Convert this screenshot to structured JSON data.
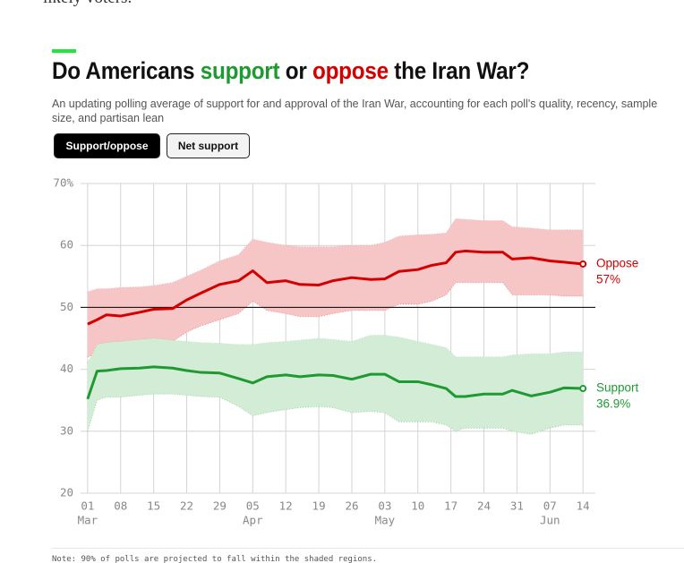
{
  "intro_fragment": "likely voters.",
  "header": {
    "title_parts": [
      "Do Americans ",
      "support",
      " or ",
      "oppose",
      " the Iran War?"
    ],
    "subtitle": "An updating polling average of support for and approval of the Iran War, accounting for each poll's quality, recency, sample size, and partisan lean"
  },
  "buttons": [
    "Support/oppose",
    "Net support"
  ],
  "chart_data": {
    "type": "band-line",
    "xlim": [
      "02-28",
      "06-17"
    ],
    "xticks": [
      {
        "value": "03-01",
        "label": "01"
      },
      {
        "value": "03-08",
        "label": "08"
      },
      {
        "value": "03-15",
        "label": "15"
      },
      {
        "value": "03-22",
        "label": "22"
      },
      {
        "value": "03-29",
        "label": "29"
      },
      {
        "value": "04-05",
        "label": "05"
      },
      {
        "value": "04-12",
        "label": "12"
      },
      {
        "value": "04-19",
        "label": "19"
      },
      {
        "value": "04-26",
        "label": "26"
      },
      {
        "value": "05-03",
        "label": "03"
      },
      {
        "value": "05-10",
        "label": "10"
      },
      {
        "value": "05-17",
        "label": "17"
      },
      {
        "value": "05-24",
        "label": "24"
      },
      {
        "value": "05-31",
        "label": "31"
      },
      {
        "value": "06-07",
        "label": "07"
      },
      {
        "value": "06-14",
        "label": "14"
      }
    ],
    "xtick_months": [
      {
        "value": "03-01",
        "label": "Mar"
      },
      {
        "value": "04-05",
        "label": "Apr"
      },
      {
        "value": "05-03",
        "label": "May"
      },
      {
        "value": "06-07",
        "label": "Jun"
      }
    ],
    "ylim": [
      20,
      70
    ],
    "yticks": [
      20,
      30,
      40,
      50,
      60,
      {
        "value": 70,
        "label": "70%"
      }
    ],
    "hline": 50,
    "grid": true,
    "x": [
      "03-01",
      "03-03",
      "03-05",
      "03-08",
      "03-12",
      "03-15",
      "03-19",
      "03-22",
      "03-25",
      "03-29",
      "04-02",
      "04-05",
      "04-08",
      "04-12",
      "04-15",
      "04-19",
      "04-22",
      "04-26",
      "04-30",
      "05-03",
      "05-06",
      "05-10",
      "05-13",
      "05-16",
      "05-18",
      "05-20",
      "05-24",
      "05-28",
      "05-30",
      "06-03",
      "06-07",
      "06-10",
      "06-14"
    ],
    "series": [
      {
        "name": "Oppose",
        "color": "#d40000",
        "band_color": "#f6c5c5",
        "end_label": "57%",
        "values": [
          47.3,
          48.0,
          48.8,
          48.6,
          49.2,
          49.7,
          49.8,
          51.2,
          52.3,
          53.7,
          54.3,
          55.9,
          54.0,
          54.3,
          53.7,
          53.6,
          54.3,
          54.8,
          54.5,
          54.6,
          55.8,
          56.1,
          56.8,
          57.2,
          58.9,
          59.1,
          58.9,
          58.9,
          57.8,
          58.0,
          57.5,
          57.3,
          57.0
        ],
        "upper": [
          52.5,
          53,
          53,
          53.2,
          53.3,
          53.5,
          54,
          55,
          56,
          57.5,
          58.5,
          61,
          60.5,
          60,
          59.8,
          59.8,
          59.8,
          60,
          60,
          60.5,
          61.5,
          61.7,
          61.8,
          62,
          64.3,
          64.2,
          64,
          64,
          63,
          62.8,
          62.5,
          62.5,
          62.5
        ],
        "lower": [
          42,
          42.5,
          43,
          43,
          43.5,
          44,
          44.5,
          46,
          47,
          48,
          49,
          51,
          49.5,
          49,
          48.5,
          48.5,
          49,
          49.5,
          49.5,
          49.5,
          50.5,
          50.5,
          51,
          52,
          54,
          54,
          54,
          54,
          52,
          52,
          52,
          51.8,
          51.8
        ]
      },
      {
        "name": "Support",
        "color": "#1f9a32",
        "band_color": "#d3ecd5",
        "end_label": "36.9%",
        "values": [
          35.2,
          39.7,
          39.8,
          40.1,
          40.2,
          40.4,
          40.2,
          39.8,
          39.5,
          39.4,
          38.5,
          37.8,
          38.8,
          39.1,
          38.8,
          39.1,
          39.0,
          38.4,
          39.2,
          39.2,
          38.0,
          38.0,
          37.5,
          36.9,
          35.6,
          35.6,
          36.0,
          36.0,
          36.6,
          35.7,
          36.3,
          37.0,
          36.9
        ],
        "upper": [
          41,
          44,
          44.3,
          44.5,
          44.8,
          45,
          44.7,
          44.5,
          44.3,
          44.2,
          44,
          44,
          44.3,
          44.5,
          44.7,
          45,
          44.8,
          44.5,
          45.5,
          45.5,
          45.2,
          44.5,
          44,
          43.5,
          42,
          42,
          42,
          42,
          42.3,
          42.5,
          42.5,
          42.8,
          42.8
        ],
        "lower": [
          30,
          35,
          35.5,
          35.5,
          35.8,
          36,
          36,
          35.8,
          35.6,
          35.5,
          34,
          32.5,
          33,
          33.5,
          33.8,
          34,
          33.8,
          33,
          33.2,
          33,
          31.5,
          31.5,
          31.5,
          31,
          30,
          30.5,
          30.5,
          30.5,
          30,
          29.5,
          30.5,
          31,
          31
        ]
      }
    ]
  },
  "note": "Note: 90% of polls are projected to fall within the shaded regions."
}
